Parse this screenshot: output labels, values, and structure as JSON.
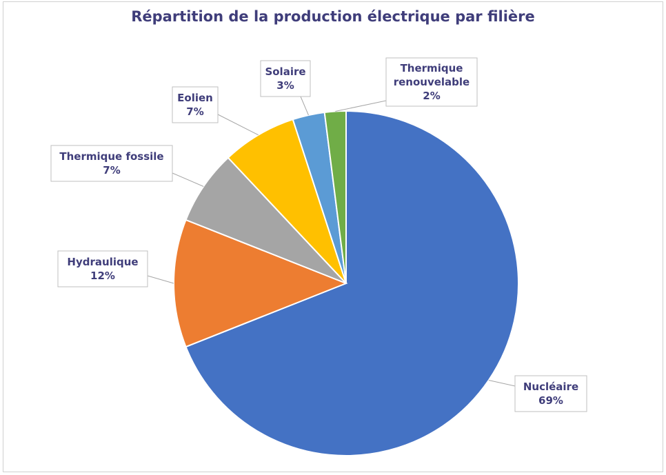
{
  "chart_data": {
    "type": "pie",
    "title": "Répartition de la production électrique par filière",
    "slices": [
      {
        "label": "Nucléaire",
        "value": 69,
        "pct_label": "69%",
        "color": "#4472c4"
      },
      {
        "label": "Hydraulique",
        "value": 12,
        "pct_label": "12%",
        "color": "#ed7d31"
      },
      {
        "label": "Thermique fossile",
        "value": 7,
        "pct_label": "7%",
        "color": "#a5a5a5"
      },
      {
        "label": "Eolien",
        "value": 7,
        "pct_label": "7%",
        "color": "#ffc000"
      },
      {
        "label": "Solaire",
        "value": 3,
        "pct_label": "3%",
        "color": "#5b9bd5"
      },
      {
        "label": "Thermique renouvelable",
        "label_lines": [
          "Thermique",
          "renouvelable"
        ],
        "value": 2,
        "pct_label": "2%",
        "color": "#70ad47"
      }
    ],
    "legend": "none",
    "data_labels": "callouts"
  }
}
